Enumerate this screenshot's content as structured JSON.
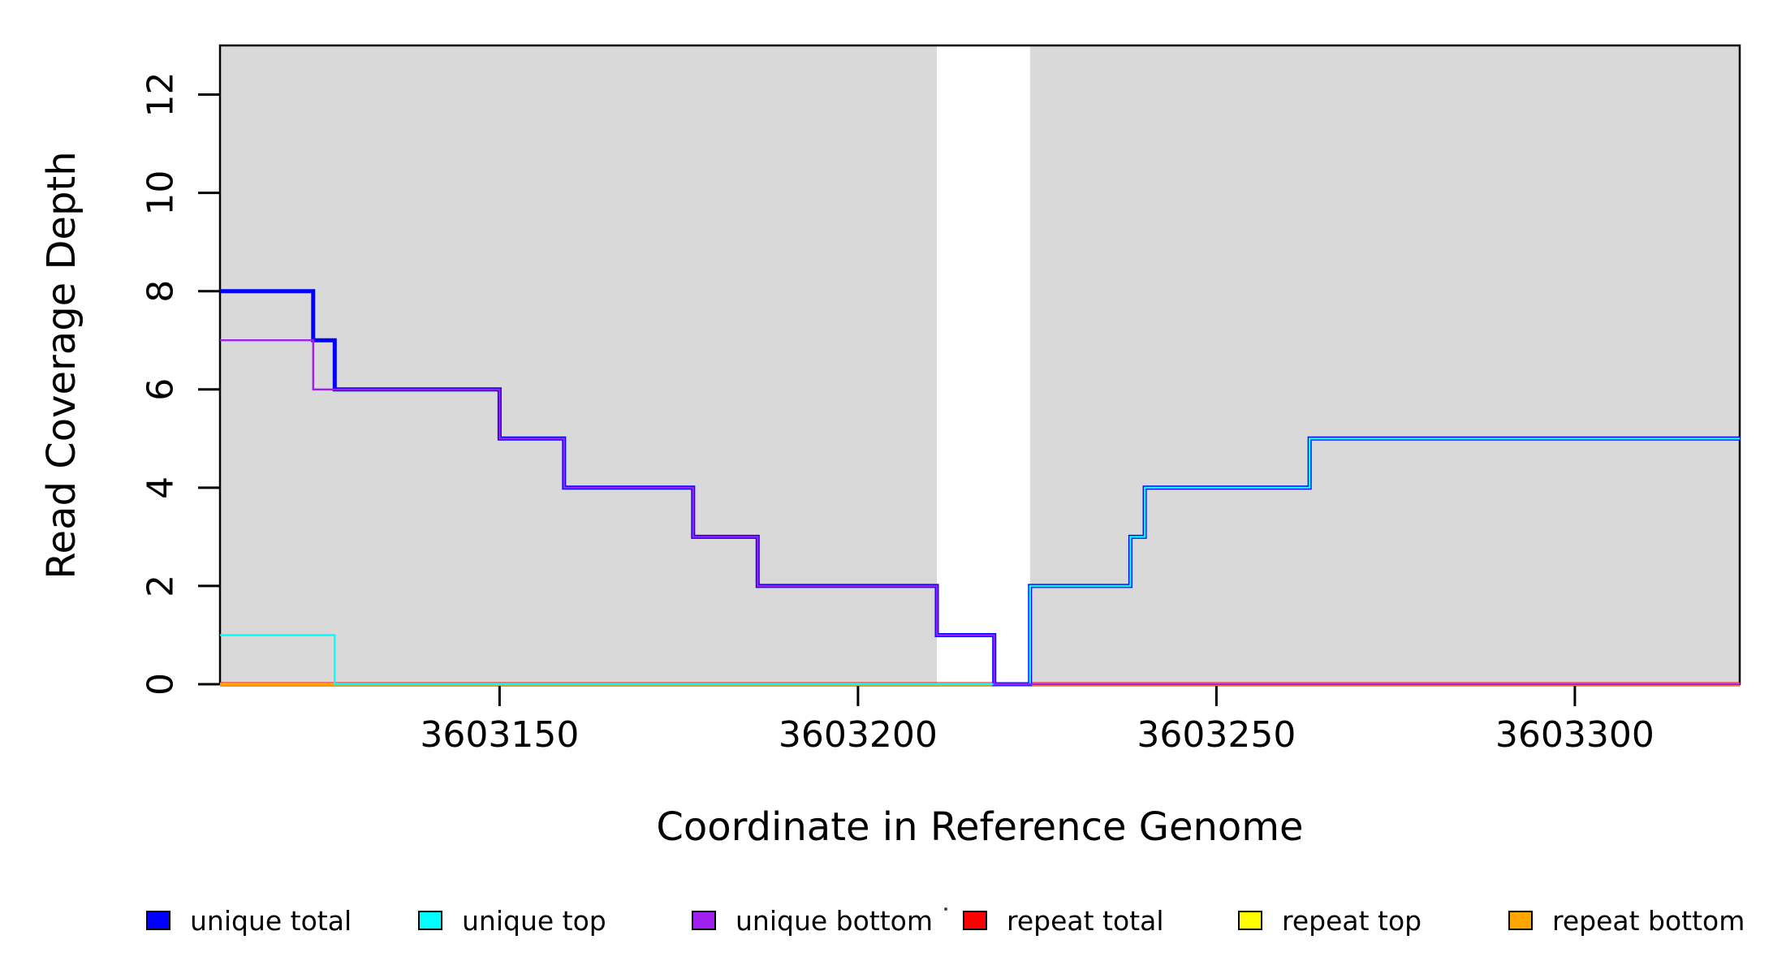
{
  "chart_data": {
    "type": "line",
    "subtype": "step-coverage",
    "title": "",
    "xlabel": "Coordinate in Reference Genome",
    "ylabel": "Read Coverage Depth",
    "x_range": [
      3603111,
      3603323
    ],
    "y_range": [
      0,
      13
    ],
    "x_ticks": [
      3603150,
      3603200,
      3603250,
      3603300
    ],
    "y_ticks": [
      0,
      2,
      4,
      6,
      8,
      10,
      12
    ],
    "grid": false,
    "background_color": "#ffffff",
    "plot_border_color": "#000000",
    "shaded_regions": [
      {
        "name": "gray-block-left",
        "x0": 3603111,
        "x1": 3603211,
        "color": "#d9d9d9"
      },
      {
        "name": "gray-block-right",
        "x0": 3603224,
        "x1": 3603323,
        "color": "#d9d9d9"
      }
    ],
    "series": [
      {
        "name": "unique total",
        "color": "#0000ff",
        "points": [
          [
            3603111,
            8
          ],
          [
            3603124,
            8
          ],
          [
            3603124,
            7
          ],
          [
            3603127,
            7
          ],
          [
            3603127,
            6
          ],
          [
            3603150,
            6
          ],
          [
            3603150,
            5
          ],
          [
            3603159,
            5
          ],
          [
            3603159,
            4
          ],
          [
            3603177,
            4
          ],
          [
            3603177,
            3
          ],
          [
            3603186,
            3
          ],
          [
            3603186,
            2
          ],
          [
            3603211,
            2
          ],
          [
            3603211,
            1
          ],
          [
            3603219,
            1
          ],
          [
            3603219,
            0
          ],
          [
            3603224,
            0
          ],
          [
            3603224,
            2
          ],
          [
            3603238,
            2
          ],
          [
            3603238,
            3
          ],
          [
            3603240,
            3
          ],
          [
            3603240,
            4
          ],
          [
            3603263,
            4
          ],
          [
            3603263,
            5
          ],
          [
            3603323,
            5
          ]
        ]
      },
      {
        "name": "unique top",
        "color": "#00ffff",
        "points": [
          [
            3603111,
            1
          ],
          [
            3603127,
            1
          ],
          [
            3603127,
            0
          ],
          [
            3603224,
            0
          ],
          [
            3603224,
            2
          ],
          [
            3603238,
            2
          ],
          [
            3603238,
            3
          ],
          [
            3603240,
            3
          ],
          [
            3603240,
            4
          ],
          [
            3603263,
            4
          ],
          [
            3603263,
            5
          ],
          [
            3603323,
            5
          ]
        ]
      },
      {
        "name": "unique bottom",
        "color": "#a020f0",
        "points": [
          [
            3603111,
            7
          ],
          [
            3603124,
            7
          ],
          [
            3603124,
            6
          ],
          [
            3603150,
            6
          ],
          [
            3603150,
            5
          ],
          [
            3603159,
            5
          ],
          [
            3603159,
            4
          ],
          [
            3603177,
            4
          ],
          [
            3603177,
            3
          ],
          [
            3603186,
            3
          ],
          [
            3603186,
            2
          ],
          [
            3603211,
            2
          ],
          [
            3603211,
            1
          ],
          [
            3603219,
            1
          ],
          [
            3603219,
            0
          ],
          [
            3603323,
            0
          ]
        ]
      },
      {
        "name": "repeat total",
        "color": "#ff0000",
        "points": [
          [
            3603111,
            0
          ],
          [
            3603323,
            0
          ]
        ]
      },
      {
        "name": "repeat top",
        "color": "#ffff00",
        "points": [
          [
            3603111,
            0
          ],
          [
            3603323,
            0
          ]
        ]
      },
      {
        "name": "repeat bottom",
        "color": "#ffa500",
        "points": [
          [
            3603111,
            0
          ],
          [
            3603323,
            0
          ]
        ]
      }
    ],
    "legend": {
      "position": "bottom",
      "labels": [
        "unique total",
        "unique top",
        "unique bottom",
        "repeat total",
        "repeat top",
        "repeat bottom"
      ]
    }
  }
}
